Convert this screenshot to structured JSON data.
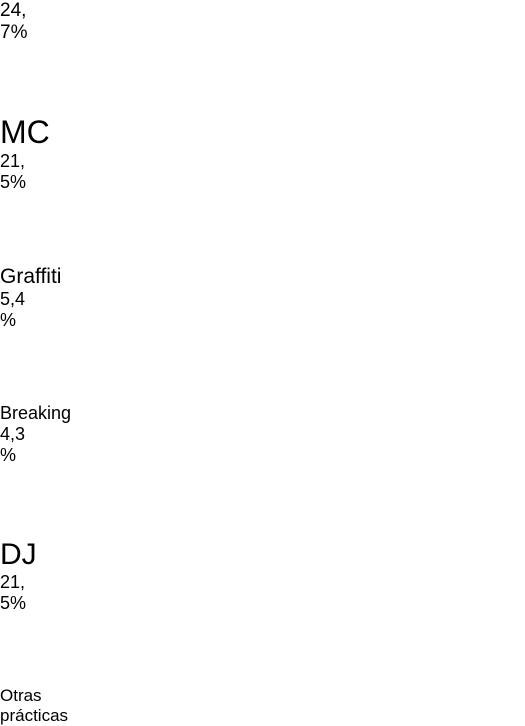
{
  "items": [
    {
      "value_lines": [
        "24,",
        "7%"
      ],
      "label_lines": [
        "MC"
      ]
    },
    {
      "value_lines": [
        "21,",
        "5%"
      ],
      "label_lines": [
        "Graffiti"
      ]
    },
    {
      "value_lines": [
        "5,4",
        "%"
      ],
      "label_lines": [
        "Breaking"
      ]
    },
    {
      "value_lines": [
        "4,3",
        "%"
      ],
      "label_lines": [
        "DJ"
      ]
    },
    {
      "value_lines": [
        "21,",
        "5%"
      ],
      "label_lines": [
        "Otras",
        "prácticas"
      ]
    }
  ]
}
